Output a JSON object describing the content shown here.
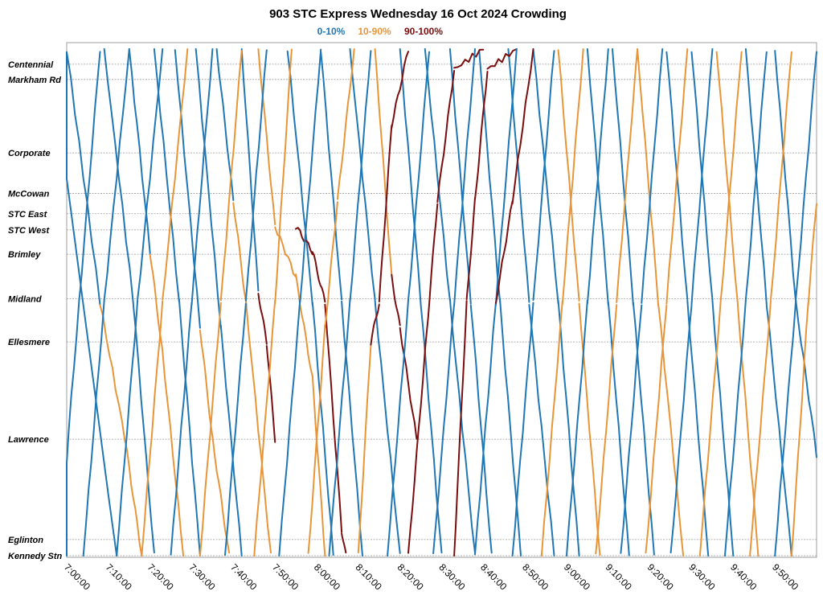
{
  "chart_data": {
    "type": "line",
    "title": "903 STC Express Wednesday 16 Oct 2024 Crowding",
    "legend": [
      {
        "label": "0-10%",
        "color": "#1f77b4"
      },
      {
        "label": "10-90%",
        "color": "#e8953a"
      },
      {
        "label": "90-100%",
        "color": "#7a0e0e"
      }
    ],
    "legend_position": "top-center",
    "grid": "horizontal dashed at each stop",
    "x_range_minutes": [
      420,
      600
    ],
    "x_ticks": [
      "7:00:00",
      "7:10:00",
      "7:20:00",
      "7:30:00",
      "7:40:00",
      "7:50:00",
      "8:00:00",
      "8:10:00",
      "8:20:00",
      "8:30:00",
      "8:40:00",
      "8:50:00",
      "9:00:00",
      "9:10:00",
      "9:20:00",
      "9:30:00",
      "9:40:00",
      "9:50:00"
    ],
    "stops": [
      {
        "name": "Centennial",
        "pos": 0.03
      },
      {
        "name": "Markham Rd",
        "pos": 0.06
      },
      {
        "name": "Corporate",
        "pos": 0.205
      },
      {
        "name": "McCowan",
        "pos": 0.285
      },
      {
        "name": "STC East",
        "pos": 0.325
      },
      {
        "name": "STC West",
        "pos": 0.357
      },
      {
        "name": "Brimley",
        "pos": 0.405
      },
      {
        "name": "Midland",
        "pos": 0.493
      },
      {
        "name": "Ellesmere",
        "pos": 0.578
      },
      {
        "name": "Lawrence",
        "pos": 0.77
      },
      {
        "name": "Eglinton",
        "pos": 0.968
      },
      {
        "name": "Kennedy Stn",
        "pos": 1.0
      }
    ],
    "trips": [
      {
        "dir": "down",
        "seg": [
          [
            416,
            0
          ],
          [
            432,
            1,
            0
          ]
        ]
      },
      {
        "dir": "down",
        "seg": [
          [
            420,
            0,
            0
          ],
          [
            428,
            0.5,
            0
          ],
          [
            434,
            0.77,
            1
          ],
          [
            438,
            1,
            1
          ]
        ]
      },
      {
        "dir": "down",
        "seg": [
          [
            429,
            0,
            0
          ],
          [
            436,
            0.5,
            0
          ],
          [
            441,
            1,
            0
          ]
        ]
      },
      {
        "dir": "down",
        "seg": [
          [
            435,
            0,
            0
          ],
          [
            440,
            0.4,
            0
          ],
          [
            443,
            0.6,
            1
          ],
          [
            448,
            1,
            1
          ]
        ]
      },
      {
        "dir": "down",
        "seg": [
          [
            441,
            0,
            0
          ],
          [
            447,
            0.5,
            0
          ],
          [
            452,
            1,
            0
          ]
        ]
      },
      {
        "dir": "down",
        "seg": [
          [
            446,
            0,
            0
          ],
          [
            452,
            0.55,
            0
          ],
          [
            455,
            0.77,
            1
          ],
          [
            459,
            1,
            1
          ]
        ]
      },
      {
        "dir": "down",
        "seg": [
          [
            451,
            0,
            0
          ],
          [
            457,
            0.55,
            0
          ],
          [
            462,
            1,
            0
          ]
        ]
      },
      {
        "dir": "down",
        "seg": [
          [
            456,
            0,
            0
          ],
          [
            460,
            0.3,
            0
          ],
          [
            463,
            0.5,
            1
          ],
          [
            469,
            1,
            1
          ]
        ]
      },
      {
        "dir": "down",
        "seg": [
          [
            462,
            0,
            0
          ],
          [
            466,
            0.48,
            0
          ],
          [
            468,
            0.58,
            2
          ],
          [
            470,
            0.77,
            2
          ]
        ]
      },
      {
        "dir": "down",
        "seg": [
          [
            466,
            0,
            1
          ],
          [
            470,
            0.35,
            1
          ],
          [
            475,
            0.45,
            1
          ],
          [
            479,
            0.65,
            1
          ],
          [
            482,
            1,
            1
          ]
        ]
      },
      {
        "dir": "down",
        "seg": [
          [
            473,
            0,
            0
          ],
          [
            479,
            0.5,
            0
          ],
          [
            484,
            1,
            0
          ]
        ]
      },
      {
        "dir": "down",
        "seg": [
          [
            475,
            0.35,
            1
          ],
          [
            479,
            0.4,
            2
          ],
          [
            482,
            0.5,
            2
          ],
          [
            486,
            0.95,
            2
          ],
          [
            487,
            1,
            2
          ]
        ]
      },
      {
        "dir": "down",
        "seg": [
          [
            481,
            0,
            0
          ],
          [
            486,
            0.5,
            0
          ],
          [
            491,
            1,
            0
          ]
        ]
      },
      {
        "dir": "down",
        "seg": [
          [
            488,
            0,
            0
          ],
          [
            494,
            0.5,
            0
          ],
          [
            500,
            1,
            0
          ]
        ]
      },
      {
        "dir": "down",
        "seg": [
          [
            494,
            0,
            1
          ],
          [
            498,
            0.45,
            1
          ],
          [
            500,
            0.55,
            2
          ],
          [
            504,
            0.77,
            2
          ]
        ]
      },
      {
        "dir": "down",
        "seg": [
          [
            500,
            0,
            0
          ],
          [
            505,
            0.5,
            0
          ],
          [
            510,
            1,
            0
          ]
        ]
      },
      {
        "dir": "down",
        "seg": [
          [
            506,
            0,
            0
          ],
          [
            512,
            0.5,
            0
          ],
          [
            518,
            1,
            0
          ]
        ]
      },
      {
        "dir": "down",
        "seg": [
          [
            512,
            0,
            0
          ],
          [
            517,
            0.5,
            0
          ],
          [
            522,
            1,
            0
          ]
        ]
      },
      {
        "dir": "down",
        "seg": [
          [
            519,
            0,
            0
          ],
          [
            524,
            0.5,
            0
          ],
          [
            529,
            1,
            0
          ]
        ]
      },
      {
        "dir": "down",
        "seg": [
          [
            526,
            0,
            0
          ],
          [
            531,
            0.5,
            0
          ],
          [
            537,
            1,
            0
          ]
        ]
      },
      {
        "dir": "down",
        "seg": [
          [
            532,
            0,
            0
          ],
          [
            538,
            0.5,
            0
          ],
          [
            543,
            1,
            0
          ]
        ]
      },
      {
        "dir": "down",
        "seg": [
          [
            538,
            0,
            1
          ],
          [
            543,
            0.5,
            1
          ],
          [
            548,
            1,
            1
          ]
        ]
      },
      {
        "dir": "down",
        "seg": [
          [
            545,
            0,
            0
          ],
          [
            550,
            0.5,
            0
          ],
          [
            555,
            1,
            0
          ]
        ]
      },
      {
        "dir": "down",
        "seg": [
          [
            551,
            0,
            0
          ],
          [
            556,
            0.5,
            0
          ],
          [
            561,
            1,
            0
          ]
        ]
      },
      {
        "dir": "down",
        "seg": [
          [
            557,
            0,
            1
          ],
          [
            562,
            0.5,
            1
          ],
          [
            568,
            1,
            1
          ]
        ]
      },
      {
        "dir": "down",
        "seg": [
          [
            564,
            0,
            0
          ],
          [
            569,
            0.5,
            0
          ],
          [
            574,
            1,
            0
          ]
        ]
      },
      {
        "dir": "down",
        "seg": [
          [
            570,
            0,
            0
          ],
          [
            575,
            0.5,
            0
          ],
          [
            580,
            1,
            0
          ]
        ]
      },
      {
        "dir": "down",
        "seg": [
          [
            576,
            0,
            1
          ],
          [
            581,
            0.5,
            1
          ],
          [
            586,
            1,
            1
          ]
        ]
      },
      {
        "dir": "down",
        "seg": [
          [
            583,
            0,
            0
          ],
          [
            588,
            0.5,
            0
          ],
          [
            594,
            1,
            0
          ]
        ]
      },
      {
        "dir": "down",
        "seg": [
          [
            590,
            0,
            0
          ],
          [
            595,
            0.5,
            0
          ],
          [
            600,
            0.8,
            0
          ]
        ]
      },
      {
        "dir": "up",
        "seg": [
          [
            418,
            1,
            0
          ],
          [
            423,
            0.5,
            0
          ],
          [
            428,
            0,
            0
          ]
        ]
      },
      {
        "dir": "up",
        "seg": [
          [
            424,
            1,
            0
          ],
          [
            429,
            0.5,
            0
          ],
          [
            435,
            0,
            0
          ]
        ]
      },
      {
        "dir": "up",
        "seg": [
          [
            432,
            1,
            0
          ],
          [
            437,
            0.5,
            0
          ],
          [
            443,
            0,
            0
          ]
        ]
      },
      {
        "dir": "up",
        "seg": [
          [
            438,
            1,
            1
          ],
          [
            443,
            0.5,
            1
          ],
          [
            449,
            0,
            1
          ]
        ]
      },
      {
        "dir": "up",
        "seg": [
          [
            445,
            1,
            0
          ],
          [
            450,
            0.5,
            0
          ],
          [
            455,
            0,
            0
          ]
        ]
      },
      {
        "dir": "up",
        "seg": [
          [
            452,
            1,
            1
          ],
          [
            457,
            0.5,
            1
          ],
          [
            462,
            0,
            1
          ]
        ]
      },
      {
        "dir": "up",
        "seg": [
          [
            458,
            1,
            0
          ],
          [
            463,
            0.5,
            0
          ],
          [
            468,
            0,
            0
          ]
        ]
      },
      {
        "dir": "up",
        "seg": [
          [
            465,
            1,
            1
          ],
          [
            470,
            0.5,
            1
          ],
          [
            474,
            0,
            1
          ]
        ]
      },
      {
        "dir": "up",
        "seg": [
          [
            471,
            1,
            0
          ],
          [
            476,
            0.5,
            0
          ],
          [
            481,
            0,
            0
          ]
        ]
      },
      {
        "dir": "up",
        "seg": [
          [
            478,
            1,
            1
          ],
          [
            482,
            0.55,
            1
          ],
          [
            485,
            0.3,
            1
          ],
          [
            489,
            0,
            1
          ]
        ]
      },
      {
        "dir": "up",
        "seg": [
          [
            483,
            1,
            0
          ],
          [
            488,
            0.5,
            0
          ],
          [
            493,
            0,
            0
          ]
        ]
      },
      {
        "dir": "up",
        "seg": [
          [
            490,
            1,
            1
          ],
          [
            493,
            0.58,
            1
          ],
          [
            495,
            0.5,
            2
          ],
          [
            498,
            0.15,
            2
          ],
          [
            502,
            0,
            2
          ]
        ]
      },
      {
        "dir": "up",
        "seg": [
          [
            497,
            1,
            0
          ],
          [
            502,
            0.5,
            0
          ],
          [
            507,
            0,
            0
          ]
        ]
      },
      {
        "dir": "up",
        "seg": [
          [
            502,
            1,
            2
          ],
          [
            506,
            0.6,
            2
          ],
          [
            509,
            0.3,
            2
          ],
          [
            513,
            0.04,
            2
          ],
          [
            520,
            0,
            2
          ]
        ]
      },
      {
        "dir": "up",
        "seg": [
          [
            508,
            1,
            0
          ],
          [
            513,
            0.5,
            0
          ],
          [
            518,
            0,
            0
          ]
        ]
      },
      {
        "dir": "up",
        "seg": [
          [
            513,
            1,
            2
          ],
          [
            516,
            0.5,
            2
          ],
          [
            518,
            0.3,
            2
          ],
          [
            521,
            0.04,
            2
          ],
          [
            528,
            0,
            2
          ]
        ]
      },
      {
        "dir": "up",
        "seg": [
          [
            518,
            1,
            0
          ],
          [
            523,
            0.5,
            0
          ],
          [
            528,
            0,
            0
          ]
        ]
      },
      {
        "dir": "up",
        "seg": [
          [
            523,
            0.5,
            1
          ],
          [
            527,
            0.3,
            2
          ],
          [
            532,
            0,
            2
          ]
        ]
      },
      {
        "dir": "up",
        "seg": [
          [
            527,
            1,
            0
          ],
          [
            532,
            0.5,
            0
          ],
          [
            537,
            0,
            0
          ]
        ]
      },
      {
        "dir": "up",
        "seg": [
          [
            534,
            1,
            1
          ],
          [
            539,
            0.5,
            1
          ],
          [
            544,
            0,
            1
          ]
        ]
      },
      {
        "dir": "up",
        "seg": [
          [
            540,
            1,
            0
          ],
          [
            545,
            0.5,
            0
          ],
          [
            550,
            0,
            0
          ]
        ]
      },
      {
        "dir": "up",
        "seg": [
          [
            547,
            1,
            1
          ],
          [
            552,
            0.5,
            1
          ],
          [
            557,
            0,
            1
          ]
        ]
      },
      {
        "dir": "up",
        "seg": [
          [
            553,
            1,
            0
          ],
          [
            558,
            0.5,
            0
          ],
          [
            563,
            0,
            0
          ]
        ]
      },
      {
        "dir": "up",
        "seg": [
          [
            559,
            1,
            1
          ],
          [
            564,
            0.5,
            1
          ],
          [
            569,
            0,
            1
          ]
        ]
      },
      {
        "dir": "up",
        "seg": [
          [
            565,
            1,
            0
          ],
          [
            570,
            0.5,
            0
          ],
          [
            575,
            0,
            0
          ]
        ]
      },
      {
        "dir": "up",
        "seg": [
          [
            572,
            1,
            1
          ],
          [
            577,
            0.5,
            1
          ],
          [
            582,
            0,
            1
          ]
        ]
      },
      {
        "dir": "up",
        "seg": [
          [
            578,
            1,
            0
          ],
          [
            583,
            0.5,
            0
          ],
          [
            588,
            0,
            0
          ]
        ]
      },
      {
        "dir": "up",
        "seg": [
          [
            584,
            1,
            1
          ],
          [
            589,
            0.5,
            1
          ],
          [
            594,
            0,
            1
          ]
        ]
      },
      {
        "dir": "up",
        "seg": [
          [
            590,
            1,
            0
          ],
          [
            595,
            0.5,
            0
          ],
          [
            600,
            0,
            0
          ]
        ]
      },
      {
        "dir": "up",
        "seg": [
          [
            594,
            1,
            1
          ],
          [
            598,
            0.5,
            1
          ],
          [
            600,
            0.3,
            1
          ]
        ]
      }
    ]
  }
}
